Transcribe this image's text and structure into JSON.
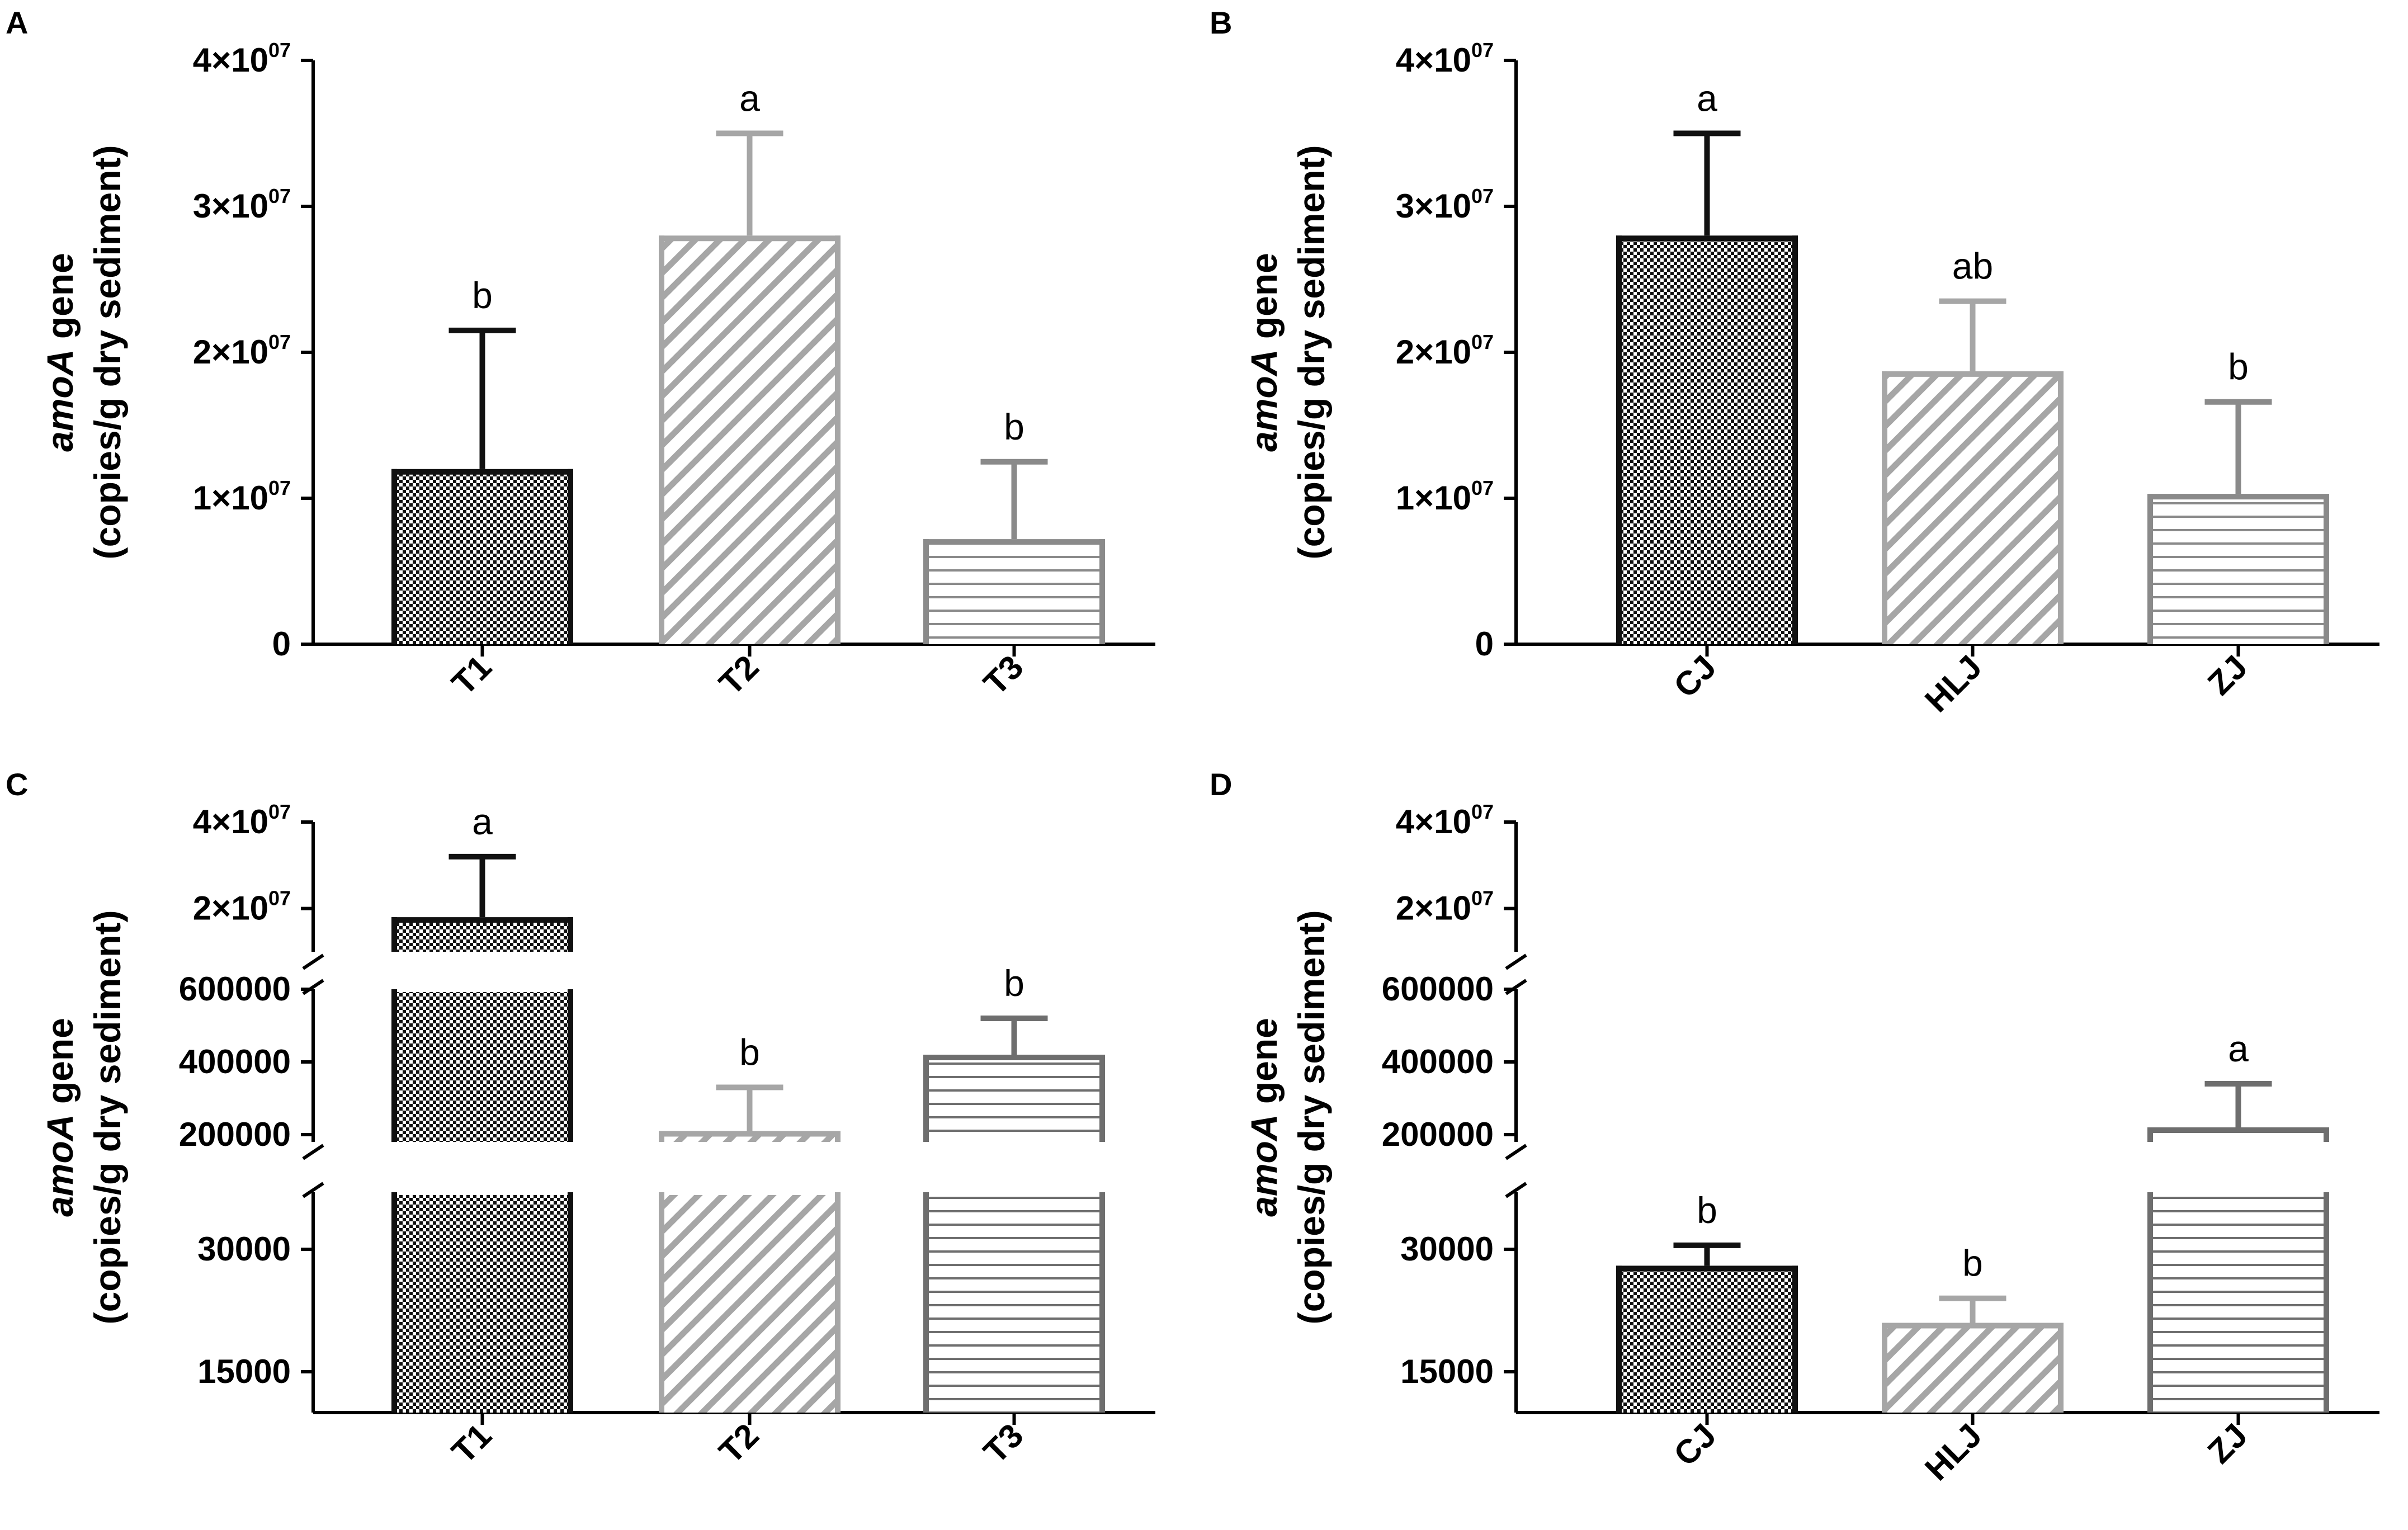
{
  "chart_data": [
    {
      "panel": "A",
      "type": "bar",
      "ylabel_italic": "amoA",
      "ylabel_line1": " gene",
      "ylabel_line2": "(copies/g dry sediment)",
      "yticks": [
        {
          "value": 0,
          "label": "0"
        },
        {
          "value": 10000000,
          "label": "1×10",
          "exp": "07"
        },
        {
          "value": 20000000,
          "label": "2×10",
          "exp": "07"
        },
        {
          "value": 30000000,
          "label": "3×10",
          "exp": "07"
        },
        {
          "value": 40000000,
          "label": "4×10",
          "exp": "07"
        }
      ],
      "ylim": [
        0,
        40000000
      ],
      "categories": [
        "T1",
        "T2",
        "T3"
      ],
      "values": [
        12000000,
        28000000,
        7200000
      ],
      "errors": [
        9500000,
        7000000,
        5300000
      ],
      "letters": [
        "b",
        "a",
        "b"
      ],
      "patterns": [
        "checker",
        "diag",
        "horiz"
      ],
      "colors": [
        "#111111",
        "#a6a6a6",
        "#8a8a8a"
      ]
    },
    {
      "panel": "B",
      "type": "bar",
      "ylabel_italic": "amoA",
      "ylabel_line1": " gene",
      "ylabel_line2": "(copies/g dry sediment)",
      "yticks": [
        {
          "value": 0,
          "label": "0"
        },
        {
          "value": 10000000,
          "label": "1×10",
          "exp": "07"
        },
        {
          "value": 20000000,
          "label": "2×10",
          "exp": "07"
        },
        {
          "value": 30000000,
          "label": "3×10",
          "exp": "07"
        },
        {
          "value": 40000000,
          "label": "4×10",
          "exp": "07"
        }
      ],
      "ylim": [
        0,
        40000000
      ],
      "categories": [
        "CJ",
        "HLJ",
        "ZJ"
      ],
      "values": [
        28000000,
        18700000,
        10300000
      ],
      "errors": [
        7000000,
        4800000,
        6300000
      ],
      "letters": [
        "a",
        "ab",
        "b"
      ],
      "patterns": [
        "checker",
        "diag",
        "horiz"
      ],
      "colors": [
        "#111111",
        "#a6a6a6",
        "#8a8a8a"
      ]
    },
    {
      "panel": "C",
      "type": "bar",
      "axis_type": "broken",
      "ylabel_italic": "amoA",
      "ylabel_line1": " gene",
      "ylabel_line2": "(copies/g dry sediment)",
      "yticks": [
        {
          "value": 15000,
          "label": "15000"
        },
        {
          "value": 30000,
          "label": "30000"
        },
        {
          "value": 200000,
          "label": "200000"
        },
        {
          "value": 400000,
          "label": "400000"
        },
        {
          "value": 600000,
          "label": "600000"
        },
        {
          "value": 20000000,
          "label": "2×10",
          "exp": "07"
        },
        {
          "value": 40000000,
          "label": "4×10",
          "exp": "07"
        }
      ],
      "categories": [
        "T1",
        "T2",
        "T3"
      ],
      "values": [
        18000000,
        210000,
        420000
      ],
      "errors": [
        14000000,
        120000,
        100000
      ],
      "letters": [
        "a",
        "b",
        "b"
      ],
      "patterns": [
        "checker",
        "diag",
        "horiz"
      ],
      "colors": [
        "#111111",
        "#a6a6a6",
        "#6e6e6e"
      ]
    },
    {
      "panel": "D",
      "type": "bar",
      "axis_type": "broken",
      "ylabel_italic": "amoA",
      "ylabel_line1": " gene",
      "ylabel_line2": "(copies/g dry sediment)",
      "yticks": [
        {
          "value": 15000,
          "label": "15000"
        },
        {
          "value": 30000,
          "label": "30000"
        },
        {
          "value": 200000,
          "label": "200000"
        },
        {
          "value": 400000,
          "label": "400000"
        },
        {
          "value": 600000,
          "label": "600000"
        },
        {
          "value": 20000000,
          "label": "2×10",
          "exp": "07"
        },
        {
          "value": 40000000,
          "label": "4×10",
          "exp": "07"
        }
      ],
      "categories": [
        "CJ",
        "HLJ",
        "ZJ"
      ],
      "values": [
        28000,
        21000,
        220000
      ],
      "errors": [
        2500,
        3000,
        120000
      ],
      "letters": [
        "b",
        "b",
        "a"
      ],
      "patterns": [
        "checker",
        "diag",
        "horiz"
      ],
      "colors": [
        "#111111",
        "#a6a6a6",
        "#6e6e6e"
      ]
    }
  ]
}
